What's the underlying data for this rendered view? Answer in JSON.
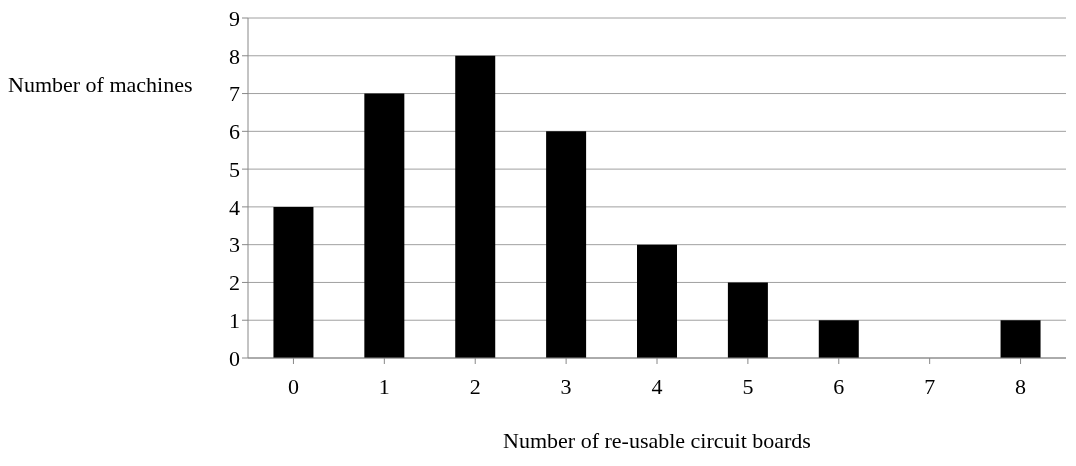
{
  "chart_data": {
    "type": "bar",
    "xlabel": "Number of  re-usable circuit boards",
    "ylabel": "Number of machines",
    "categories": [
      "0",
      "1",
      "2",
      "3",
      "4",
      "5",
      "6",
      "7",
      "8"
    ],
    "values": [
      4,
      7,
      8,
      6,
      3,
      2,
      1,
      0,
      1
    ],
    "color": "#000000",
    "ylim": [
      0,
      9
    ],
    "yticks": [
      0,
      1,
      2,
      3,
      4,
      5,
      6,
      7,
      8,
      9
    ],
    "grid": "y",
    "legend": false
  }
}
